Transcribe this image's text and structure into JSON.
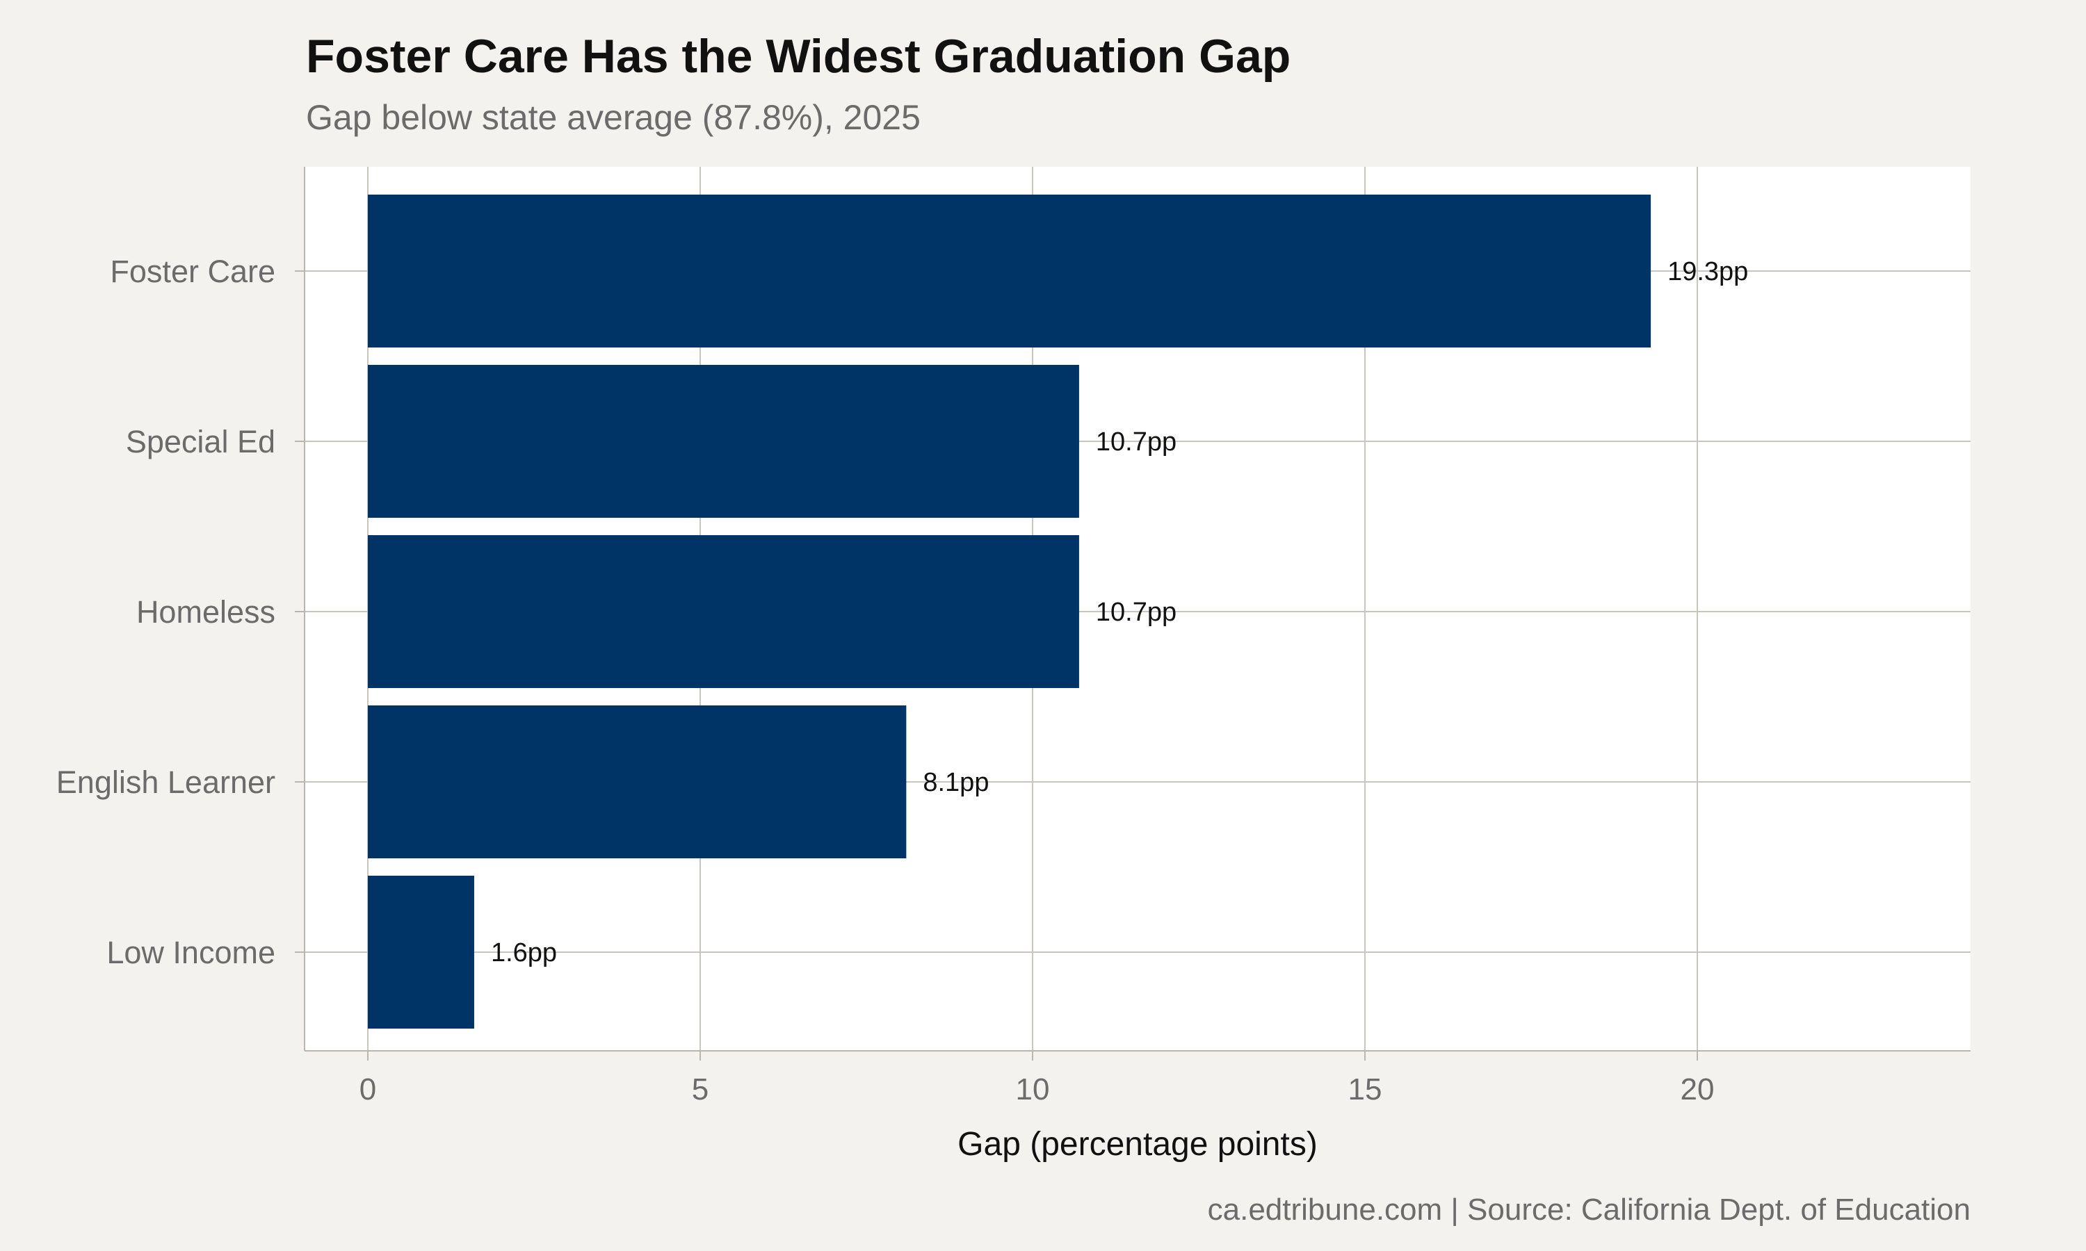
{
  "chart_data": {
    "type": "bar",
    "orientation": "horizontal",
    "title": "Foster Care Has the Widest Graduation Gap",
    "subtitle": "Gap below state average (87.8%), 2025",
    "caption": "ca.edtribune.com | Source: California Dept. of Education",
    "categories": [
      "Foster Care",
      "Special Ed",
      "Homeless",
      "English Learner",
      "Low Income"
    ],
    "values": [
      19.3,
      10.7,
      10.7,
      8.1,
      1.6
    ],
    "data_labels": [
      "19.3pp",
      "10.7pp",
      "10.7pp",
      "8.1pp",
      "1.6pp"
    ],
    "xlabel": "Gap (percentage points)",
    "ylabel": "",
    "xlim": [
      0,
      24
    ],
    "xticks": [
      0,
      5,
      10,
      15,
      20
    ],
    "xtick_labels": [
      "0",
      "5",
      "10",
      "15",
      "20"
    ],
    "grid": true,
    "bar_color": "#003366",
    "panel_color": "#ffffff",
    "background_color": "#f4f2ee"
  }
}
